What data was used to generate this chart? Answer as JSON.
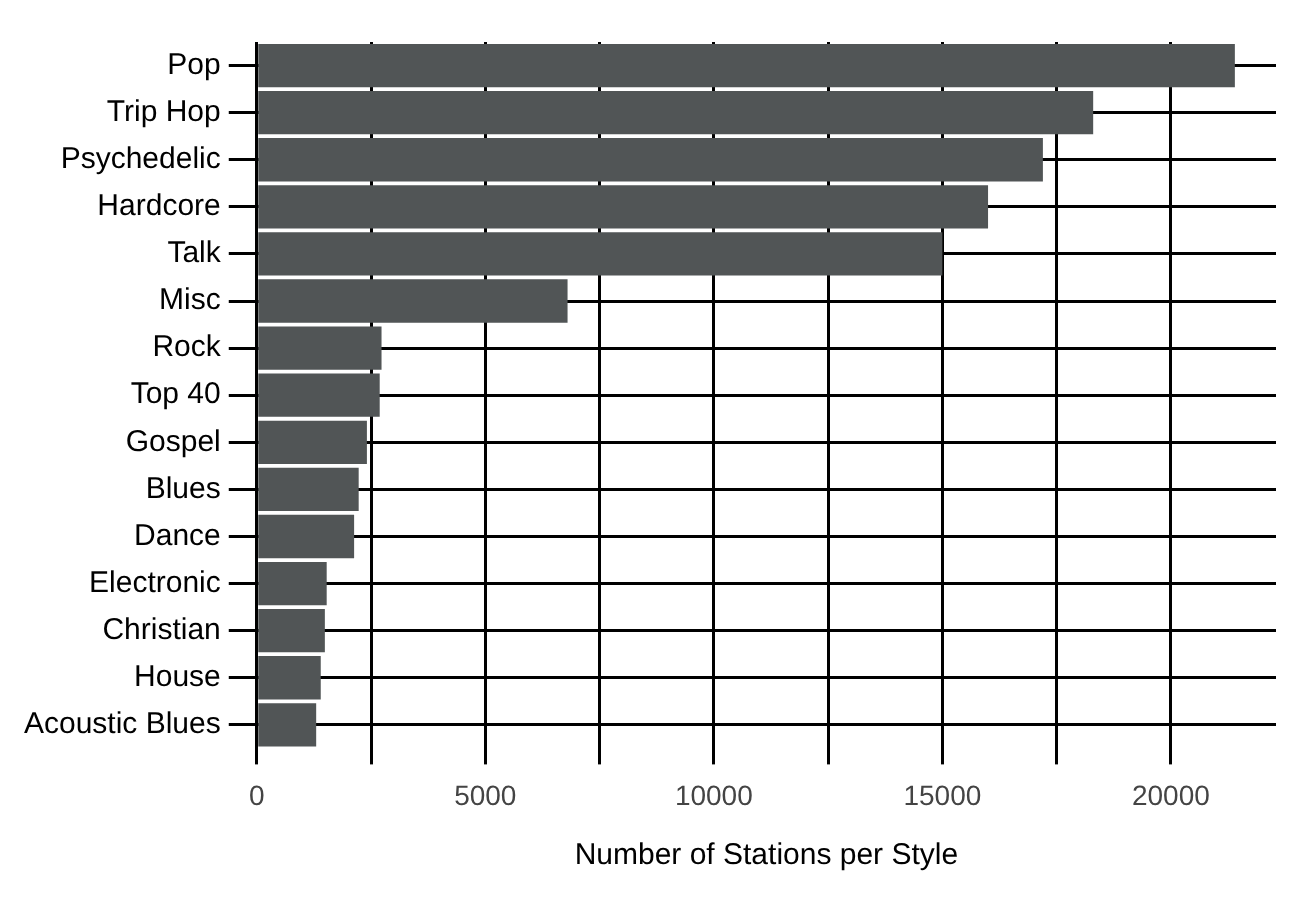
{
  "chart_data": {
    "type": "bar",
    "orientation": "horizontal",
    "xlabel": "Number of Stations per Style",
    "categories": [
      "Pop",
      "Trip Hop",
      "Psychedelic",
      "Hardcore",
      "Talk",
      "Misc",
      "Rock",
      "Top 40",
      "Gospel",
      "Blues",
      "Dance",
      "Electronic",
      "Christian",
      "House",
      "Acoustic Blues"
    ],
    "values": [
      21400,
      18300,
      17200,
      16000,
      15000,
      6800,
      2730,
      2690,
      2410,
      2230,
      2130,
      1530,
      1490,
      1400,
      1300
    ],
    "color": "#515556",
    "xlim": [
      0,
      22300
    ],
    "xticks": [
      0,
      {
        "value": 2500,
        "label": null
      },
      5000,
      {
        "value": 7500,
        "label": null
      },
      10000,
      {
        "value": 12500,
        "label": null
      },
      15000,
      {
        "value": 17500,
        "label": null
      },
      20000
    ],
    "grid": true,
    "legend": false
  }
}
